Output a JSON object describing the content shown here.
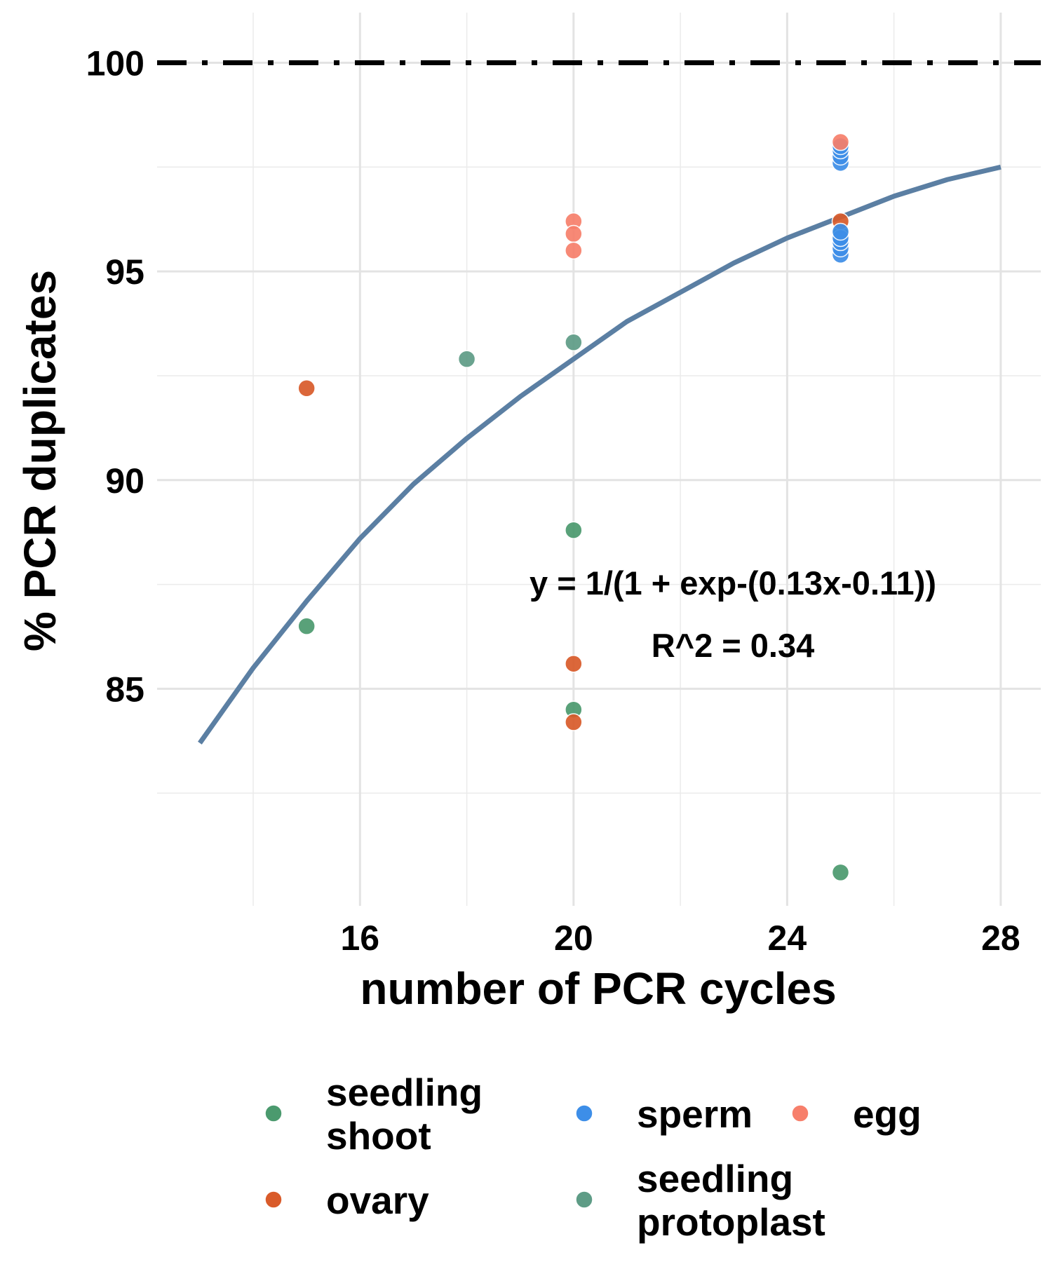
{
  "chart_data": {
    "type": "scatter",
    "xlabel": "number of PCR cycles",
    "ylabel": "% PCR duplicates",
    "xlim": [
      12.2,
      28.75
    ],
    "ylim": [
      79.8,
      101.2
    ],
    "x_ticks": [
      "16",
      "20",
      "24",
      "28"
    ],
    "x_tick_values": [
      16,
      20,
      24,
      28
    ],
    "y_ticks": [
      "85",
      "90",
      "95",
      "100"
    ],
    "y_tick_values": [
      85,
      90,
      95,
      100
    ],
    "grid": true,
    "reference_line": {
      "y": 100,
      "style": "dash-dot",
      "color": "#000000"
    },
    "fit": {
      "equation": "y = 1/(1 + exp-(0.13x-0.11))",
      "r_squared": "R^2 = 0.34",
      "color": "#5b7fa3",
      "x": [
        13.0,
        14.0,
        15.0,
        16.0,
        17.0,
        18.0,
        19.0,
        20.0,
        21.0,
        22.0,
        23.0,
        24.0,
        25.0,
        26.0,
        27.0,
        28.0
      ],
      "y": [
        83.7,
        85.5,
        87.1,
        88.6,
        89.9,
        91.0,
        92.0,
        92.9,
        93.8,
        94.5,
        95.2,
        95.8,
        96.3,
        96.8,
        97.2,
        97.5
      ]
    },
    "series": [
      {
        "name": "seedling\nshoot",
        "color": "#4b9a6e",
        "x": [
          15,
          20,
          20,
          25,
          25
        ],
        "y": [
          86.5,
          88.8,
          84.5,
          95.9,
          80.6
        ]
      },
      {
        "name": "ovary",
        "color": "#d95b2a",
        "x": [
          15,
          20,
          20,
          25
        ],
        "y": [
          92.2,
          85.6,
          84.2,
          96.2
        ]
      },
      {
        "name": "sperm",
        "color": "#3d8ee8",
        "x": [
          25,
          25,
          25,
          25,
          25,
          25,
          25,
          25,
          25
        ],
        "y": [
          97.6,
          97.75,
          97.9,
          98.0,
          95.4,
          95.55,
          95.7,
          95.8,
          95.95
        ]
      },
      {
        "name": "seedling\nprotoplast",
        "color": "#5e9c86",
        "x": [
          18,
          20
        ],
        "y": [
          92.9,
          93.3
        ]
      },
      {
        "name": "egg",
        "color": "#f77f6b",
        "x": [
          20,
          20,
          20,
          25
        ],
        "y": [
          96.2,
          95.9,
          95.5,
          98.1
        ]
      }
    ],
    "legend_position": "bottom"
  }
}
